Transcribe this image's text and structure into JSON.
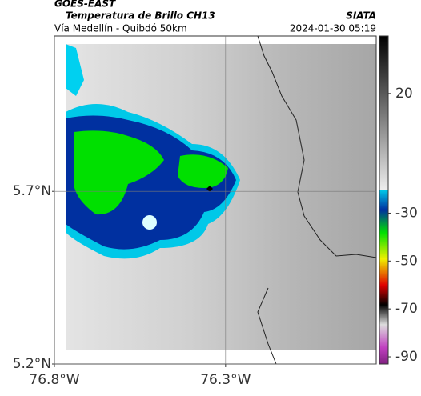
{
  "header": {
    "title": "GOES-EAST",
    "subtitle": "Temperatura de Brillo CH13",
    "source": "SIATA",
    "region": "Vía Medellín - Quibdó 50km",
    "timestamp": "2024-01-30 05:19"
  },
  "map": {
    "xlim": [
      -76.8,
      -75.86
    ],
    "ylim": [
      5.2,
      6.15
    ],
    "xticks": [
      {
        "value": -76.8,
        "label": "76.8°W"
      },
      {
        "value": -76.3,
        "label": "76.3°W"
      }
    ],
    "yticks": [
      {
        "value": 5.7,
        "label": "5.7°N"
      },
      {
        "value": 5.2,
        "label": "5.2°N"
      }
    ],
    "grid": true
  },
  "colorbar": {
    "lim": [
      -93,
      44
    ],
    "ticks": [
      20,
      -30,
      -50,
      -70,
      -90
    ]
  }
}
